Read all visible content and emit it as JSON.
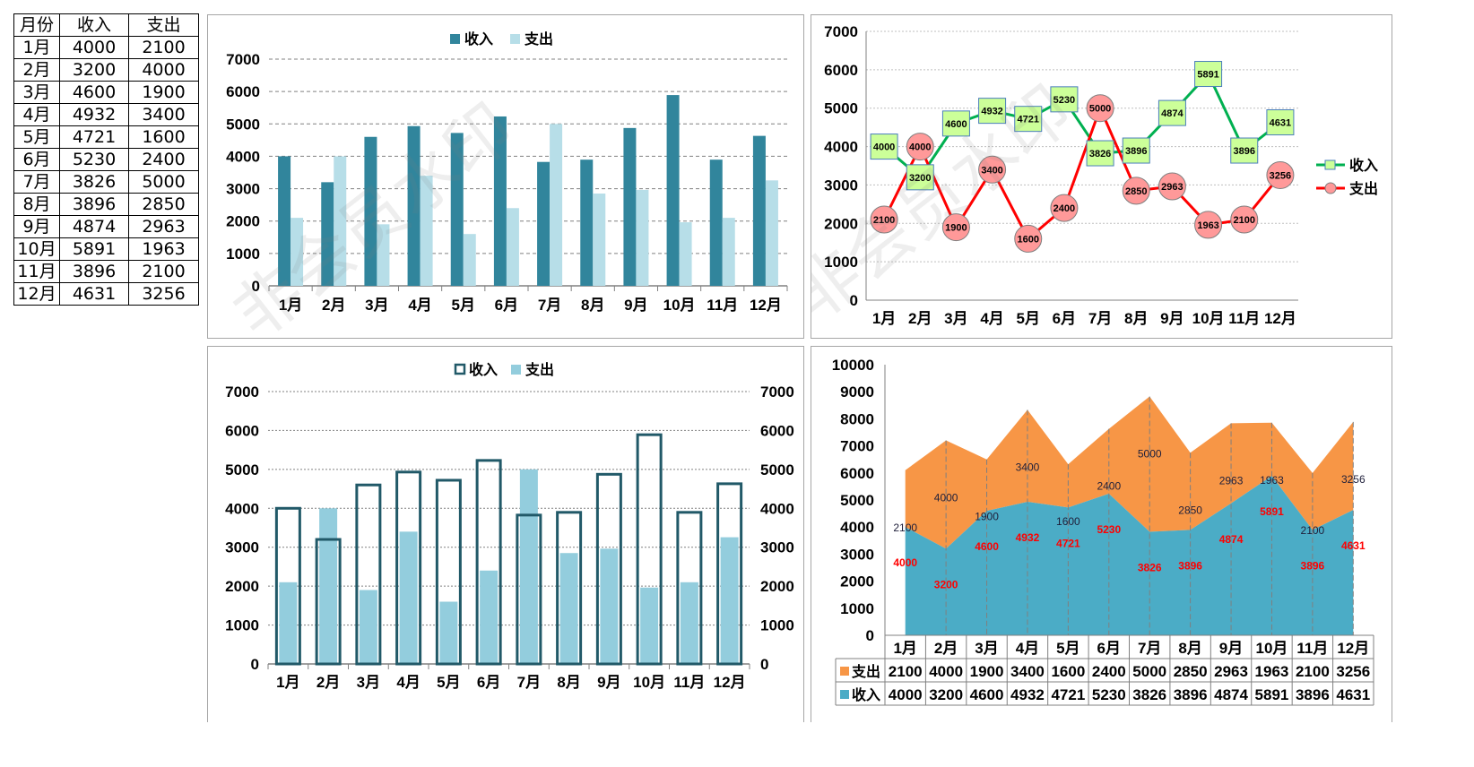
{
  "table": {
    "headers": [
      "月份",
      "收入",
      "支出"
    ],
    "rows": [
      [
        "1月",
        "4000",
        "2100"
      ],
      [
        "2月",
        "3200",
        "4000"
      ],
      [
        "3月",
        "4600",
        "1900"
      ],
      [
        "4月",
        "4932",
        "3400"
      ],
      [
        "5月",
        "4721",
        "1600"
      ],
      [
        "6月",
        "5230",
        "2400"
      ],
      [
        "7月",
        "3826",
        "5000"
      ],
      [
        "8月",
        "3896",
        "2850"
      ],
      [
        "9月",
        "4874",
        "2963"
      ],
      [
        "10月",
        "5891",
        "1963"
      ],
      [
        "11月",
        "3896",
        "2100"
      ],
      [
        "12月",
        "4631",
        "3256"
      ]
    ]
  },
  "watermark": "非会员水印",
  "colors": {
    "c1_income": "#31859c",
    "c1_expense": "#b7dee8",
    "c2_income_line": "#00b050",
    "c2_income_marker": "#ccff99",
    "c2_expense_line": "#ff0000",
    "c2_expense_marker": "#ff9999",
    "c3_income": "#215968",
    "c3_expense": "#93cddd",
    "c4_income": "#4bacc6",
    "c4_expense": "#f79646"
  },
  "chart_data": [
    {
      "type": "bar",
      "categories": [
        "1月",
        "2月",
        "3月",
        "4月",
        "5月",
        "6月",
        "7月",
        "8月",
        "9月",
        "10月",
        "11月",
        "12月"
      ],
      "series": [
        {
          "name": "收入",
          "values": [
            4000,
            3200,
            4600,
            4932,
            4721,
            5230,
            3826,
            3896,
            4874,
            5891,
            3896,
            4631
          ]
        },
        {
          "name": "支出",
          "values": [
            2100,
            4000,
            1900,
            3400,
            1600,
            2400,
            5000,
            2850,
            2963,
            1963,
            2100,
            3256
          ]
        }
      ],
      "ylim": [
        0,
        7000
      ],
      "yticks": [
        0,
        1000,
        2000,
        3000,
        4000,
        5000,
        6000,
        7000
      ],
      "grid": "dashed-horizontal",
      "legend": "top"
    },
    {
      "type": "line",
      "categories": [
        "1月",
        "2月",
        "3月",
        "4月",
        "5月",
        "6月",
        "7月",
        "8月",
        "9月",
        "10月",
        "11月",
        "12月"
      ],
      "series": [
        {
          "name": "收入",
          "values": [
            4000,
            3200,
            4600,
            4932,
            4721,
            5230,
            3826,
            3896,
            4874,
            5891,
            3896,
            4631
          ],
          "marker": "square"
        },
        {
          "name": "支出",
          "values": [
            2100,
            4000,
            1900,
            3400,
            1600,
            2400,
            5000,
            2850,
            2963,
            1963,
            2100,
            3256
          ],
          "marker": "circle"
        }
      ],
      "ylim": [
        0,
        7000
      ],
      "yticks": [
        0,
        1000,
        2000,
        3000,
        4000,
        5000,
        6000,
        7000
      ],
      "grid": "dashed-horizontal",
      "legend": "right",
      "data_labels": true
    },
    {
      "type": "bar",
      "categories": [
        "1月",
        "2月",
        "3月",
        "4月",
        "5月",
        "6月",
        "7月",
        "8月",
        "9月",
        "10月",
        "11月",
        "12月"
      ],
      "series": [
        {
          "name": "收入",
          "values": [
            4000,
            3200,
            4600,
            4932,
            4721,
            5230,
            3826,
            3896,
            4874,
            5891,
            3896,
            4631
          ],
          "style": "outline",
          "axis": "left"
        },
        {
          "name": "支出",
          "values": [
            2100,
            4000,
            1900,
            3400,
            1600,
            2400,
            5000,
            2850,
            2963,
            1963,
            2100,
            3256
          ],
          "style": "filled",
          "axis": "right"
        }
      ],
      "ylim": [
        0,
        7000
      ],
      "yticks": [
        0,
        1000,
        2000,
        3000,
        4000,
        5000,
        6000,
        7000
      ],
      "y2lim": [
        0,
        7000
      ],
      "grid": "dashed-horizontal",
      "legend": "top"
    },
    {
      "type": "area",
      "stacked": true,
      "categories": [
        "1月",
        "2月",
        "3月",
        "4月",
        "5月",
        "6月",
        "7月",
        "8月",
        "9月",
        "10月",
        "11月",
        "12月"
      ],
      "series": [
        {
          "name": "收入",
          "values": [
            4000,
            3200,
            4600,
            4932,
            4721,
            5230,
            3826,
            3896,
            4874,
            5891,
            3896,
            4631
          ]
        },
        {
          "name": "支出",
          "values": [
            2100,
            4000,
            1900,
            3400,
            1600,
            2400,
            5000,
            2850,
            2963,
            1963,
            2100,
            3256
          ]
        }
      ],
      "ylim": [
        0,
        10000
      ],
      "yticks": [
        0,
        1000,
        2000,
        3000,
        4000,
        5000,
        6000,
        7000,
        8000,
        9000,
        10000
      ],
      "data_labels": true,
      "data_table": true
    }
  ]
}
